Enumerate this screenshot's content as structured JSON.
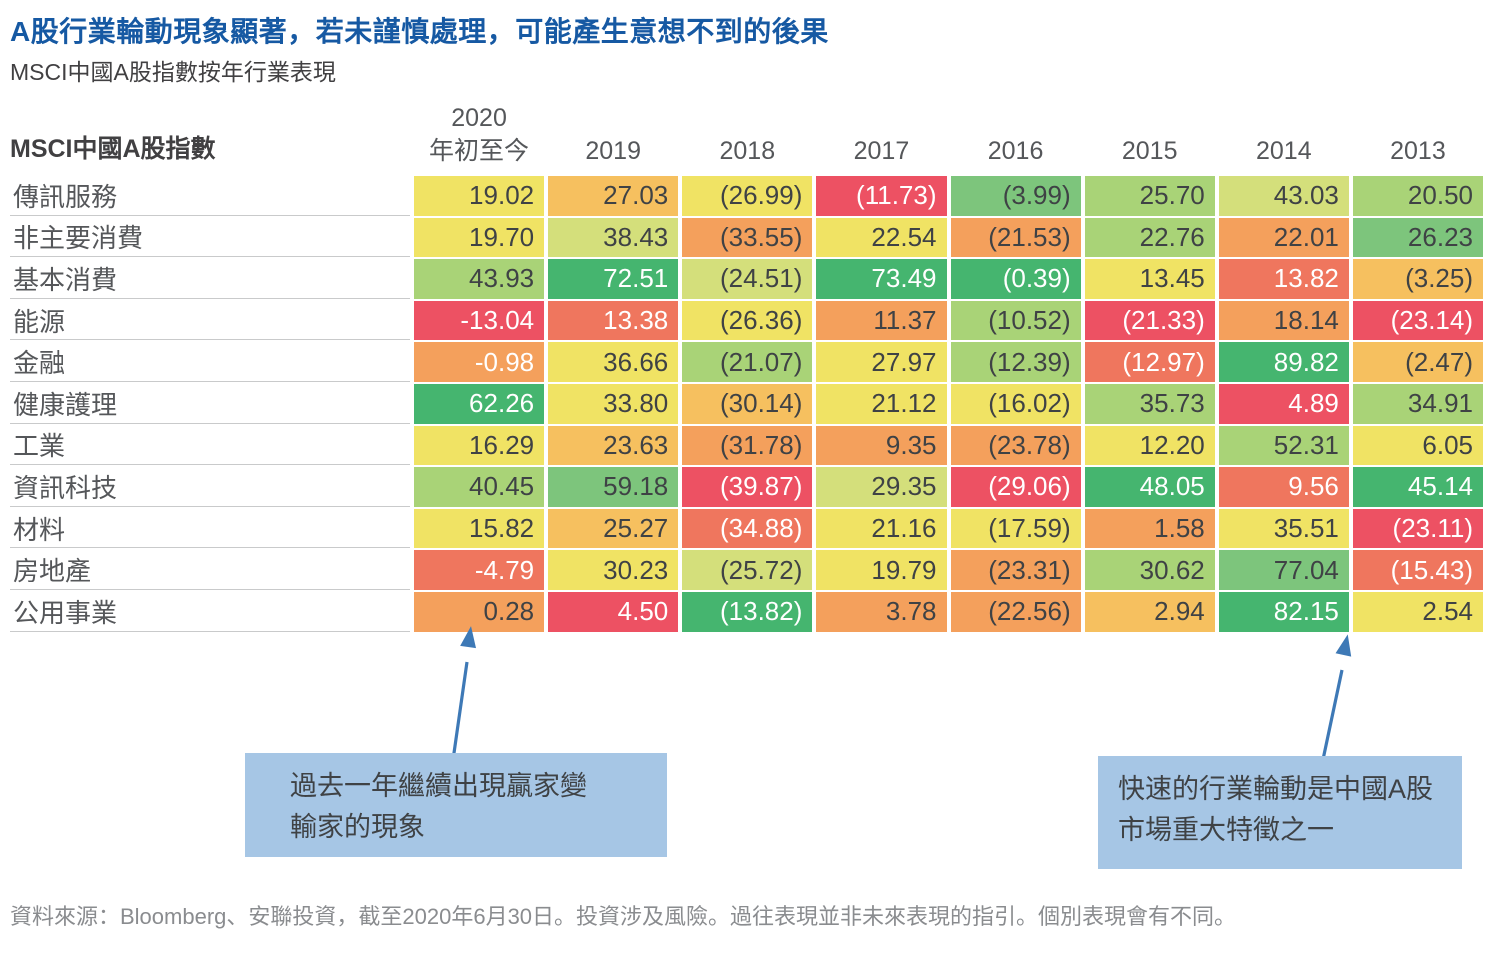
{
  "page": {
    "title": "A股行業輪動現象顯著，若未謹慎處理，可能產生意想不到的後果",
    "subtitle": "MSCI中國A股指數按年行業表現",
    "source": "資料來源：Bloomberg、安聯投資，截至2020年6月30日。投資涉及風險。過往表現並非未來表現的指引。個別表現會有不同。"
  },
  "colors": {
    "title_blue": "#1659a3",
    "heading_gray": "#414042",
    "label_gray": "#55575a",
    "value_dark": "#3f4245",
    "source_gray": "#8a8c8f",
    "callout_bg": "#a6c6e5",
    "arrow_blue": "#3e79b6",
    "heat": {
      "dg": {
        "bg": "#45b56f",
        "fg": "#ffffff"
      },
      "mg": {
        "bg": "#7dc57c",
        "fg": "#3f4245"
      },
      "lg": {
        "bg": "#a9d377",
        "fg": "#3f4245"
      },
      "yg": {
        "bg": "#d4df7b",
        "fg": "#3f4245"
      },
      "y": {
        "bg": "#f0e364",
        "fg": "#3f4245"
      },
      "am": {
        "bg": "#f6c05f",
        "fg": "#3f4245"
      },
      "or": {
        "bg": "#f4a05c",
        "fg": "#3f4245"
      },
      "orw": {
        "bg": "#f4a05c",
        "fg": "#ffffff"
      },
      "sal": {
        "bg": "#ef765e",
        "fg": "#ffffff"
      },
      "r": {
        "bg": "#ed5163",
        "fg": "#ffffff"
      }
    }
  },
  "table": {
    "index_label": "MSCI中國A股指數",
    "col_headers": [
      {
        "lines": [
          "2020",
          "年初至今"
        ]
      },
      {
        "lines": [
          "2019"
        ]
      },
      {
        "lines": [
          "2018"
        ]
      },
      {
        "lines": [
          "2017"
        ]
      },
      {
        "lines": [
          "2016"
        ]
      },
      {
        "lines": [
          "2015"
        ]
      },
      {
        "lines": [
          "2014"
        ]
      },
      {
        "lines": [
          "2013"
        ]
      }
    ],
    "rows": [
      {
        "label": "傳訊服務",
        "cells": [
          [
            "19.02",
            "y"
          ],
          [
            "27.03",
            "am"
          ],
          [
            "(26.99)",
            "y"
          ],
          [
            "(11.73)",
            "r"
          ],
          [
            "(3.99)",
            "mg"
          ],
          [
            "25.70",
            "lg"
          ],
          [
            "43.03",
            "yg"
          ],
          [
            "20.50",
            "lg"
          ]
        ]
      },
      {
        "label": "非主要消費",
        "cells": [
          [
            "19.70",
            "y"
          ],
          [
            "38.43",
            "yg"
          ],
          [
            "(33.55)",
            "or"
          ],
          [
            "22.54",
            "y"
          ],
          [
            "(21.53)",
            "or"
          ],
          [
            "22.76",
            "lg"
          ],
          [
            "22.01",
            "or"
          ],
          [
            "26.23",
            "mg"
          ]
        ]
      },
      {
        "label": "基本消費",
        "cells": [
          [
            "43.93",
            "lg"
          ],
          [
            "72.51",
            "dg"
          ],
          [
            "(24.51)",
            "yg"
          ],
          [
            "73.49",
            "dg"
          ],
          [
            "(0.39)",
            "dg"
          ],
          [
            "13.45",
            "y"
          ],
          [
            "13.82",
            "sal"
          ],
          [
            "(3.25)",
            "am"
          ]
        ]
      },
      {
        "label": "能源",
        "cells": [
          [
            "-13.04",
            "r"
          ],
          [
            "13.38",
            "sal"
          ],
          [
            "(26.36)",
            "y"
          ],
          [
            "11.37",
            "or"
          ],
          [
            "(10.52)",
            "lg"
          ],
          [
            "(21.33)",
            "r"
          ],
          [
            "18.14",
            "or"
          ],
          [
            "(23.14)",
            "r"
          ]
        ]
      },
      {
        "label": "金融",
        "cells": [
          [
            "-0.98",
            "orw"
          ],
          [
            "36.66",
            "y"
          ],
          [
            "(21.07)",
            "lg"
          ],
          [
            "27.97",
            "y"
          ],
          [
            "(12.39)",
            "lg"
          ],
          [
            "(12.97)",
            "sal"
          ],
          [
            "89.82",
            "dg"
          ],
          [
            "(2.47)",
            "am"
          ]
        ]
      },
      {
        "label": "健康護理",
        "cells": [
          [
            "62.26",
            "dg"
          ],
          [
            "33.80",
            "y"
          ],
          [
            "(30.14)",
            "am"
          ],
          [
            "21.12",
            "y"
          ],
          [
            "(16.02)",
            "y"
          ],
          [
            "35.73",
            "lg"
          ],
          [
            "4.89",
            "r"
          ],
          [
            "34.91",
            "lg"
          ]
        ]
      },
      {
        "label": "工業",
        "cells": [
          [
            "16.29",
            "y"
          ],
          [
            "23.63",
            "am"
          ],
          [
            "(31.78)",
            "or"
          ],
          [
            "9.35",
            "or"
          ],
          [
            "(23.78)",
            "or"
          ],
          [
            "12.20",
            "y"
          ],
          [
            "52.31",
            "lg"
          ],
          [
            "6.05",
            "y"
          ]
        ]
      },
      {
        "label": "資訊科技",
        "cells": [
          [
            "40.45",
            "lg"
          ],
          [
            "59.18",
            "mg"
          ],
          [
            "(39.87)",
            "r"
          ],
          [
            "29.35",
            "yg"
          ],
          [
            "(29.06)",
            "r"
          ],
          [
            "48.05",
            "dg"
          ],
          [
            "9.56",
            "sal"
          ],
          [
            "45.14",
            "dg"
          ]
        ]
      },
      {
        "label": "材料",
        "cells": [
          [
            "15.82",
            "y"
          ],
          [
            "25.27",
            "am"
          ],
          [
            "(34.88)",
            "sal"
          ],
          [
            "21.16",
            "y"
          ],
          [
            "(17.59)",
            "y"
          ],
          [
            "1.58",
            "or"
          ],
          [
            "35.51",
            "y"
          ],
          [
            "(23.11)",
            "r"
          ]
        ]
      },
      {
        "label": "房地產",
        "cells": [
          [
            "-4.79",
            "sal"
          ],
          [
            "30.23",
            "y"
          ],
          [
            "(25.72)",
            "yg"
          ],
          [
            "19.79",
            "y"
          ],
          [
            "(23.31)",
            "or"
          ],
          [
            "30.62",
            "lg"
          ],
          [
            "77.04",
            "mg"
          ],
          [
            "(15.43)",
            "sal"
          ]
        ]
      },
      {
        "label": "公用事業",
        "cells": [
          [
            "0.28",
            "or"
          ],
          [
            "4.50",
            "r"
          ],
          [
            "(13.82)",
            "dg"
          ],
          [
            "3.78",
            "or"
          ],
          [
            "(22.56)",
            "or"
          ],
          [
            "2.94",
            "am"
          ],
          [
            "82.15",
            "dg"
          ],
          [
            "2.54",
            "y"
          ]
        ]
      }
    ]
  },
  "annotations": {
    "left": {
      "text": "過去一年繼續出現贏家變\n輸家的現象"
    },
    "right": {
      "text": "快速的行業輪動是中國A股\n市場重大特徵之一"
    }
  },
  "chart_data": {
    "type": "heatmap",
    "title": "A股行業輪動現象顯著，若未謹慎處理，可能產生意想不到的後果",
    "subtitle": "MSCI中國A股指數按年行業表現",
    "columns": [
      "2020年初至今",
      "2019",
      "2018",
      "2017",
      "2016",
      "2015",
      "2014",
      "2013"
    ],
    "rows": [
      "傳訊服務",
      "非主要消費",
      "基本消費",
      "能源",
      "金融",
      "健康護理",
      "工業",
      "資訊科技",
      "材料",
      "房地產",
      "公用事業"
    ],
    "values": [
      [
        19.02,
        27.03,
        -26.99,
        -11.73,
        -3.99,
        25.7,
        43.03,
        20.5
      ],
      [
        19.7,
        38.43,
        -33.55,
        22.54,
        -21.53,
        22.76,
        22.01,
        26.23
      ],
      [
        43.93,
        72.51,
        -24.51,
        73.49,
        -0.39,
        13.45,
        13.82,
        -3.25
      ],
      [
        -13.04,
        13.38,
        -26.36,
        11.37,
        -10.52,
        -21.33,
        18.14,
        -23.14
      ],
      [
        -0.98,
        36.66,
        -21.07,
        27.97,
        -12.39,
        -12.97,
        89.82,
        -2.47
      ],
      [
        62.26,
        33.8,
        -30.14,
        21.12,
        -16.02,
        35.73,
        4.89,
        34.91
      ],
      [
        16.29,
        23.63,
        -31.78,
        9.35,
        -23.78,
        12.2,
        52.31,
        6.05
      ],
      [
        40.45,
        59.18,
        -39.87,
        29.35,
        -29.06,
        48.05,
        9.56,
        45.14
      ],
      [
        15.82,
        25.27,
        -34.88,
        21.16,
        -17.59,
        1.58,
        35.51,
        -23.11
      ],
      [
        -4.79,
        30.23,
        -25.72,
        19.79,
        -23.31,
        30.62,
        77.04,
        -15.43
      ],
      [
        0.28,
        4.5,
        -13.82,
        3.78,
        -22.56,
        2.94,
        82.15,
        2.54
      ]
    ],
    "negative_format": "parentheses (minus sign in 2020 YTD column)",
    "color_scale": "red (worst) → yellow → green (best), ranked relative within each year column",
    "grid": false,
    "legend": "none"
  }
}
